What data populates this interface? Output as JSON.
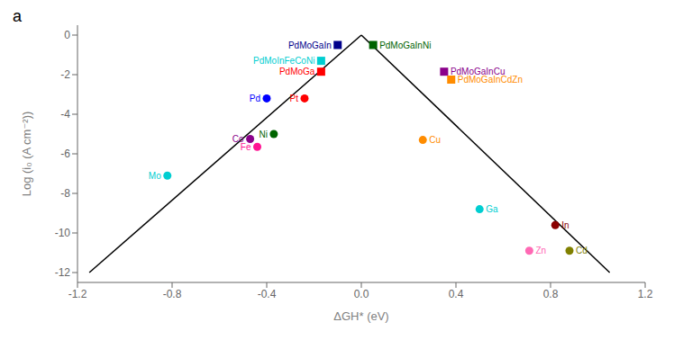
{
  "chart_data": {
    "type": "scatter",
    "title": "a",
    "xlabel": "ΔGH* (eV)",
    "ylabel": "Log (i₀ (A cm⁻²))",
    "xlim": [
      -1.2,
      1.2
    ],
    "ylim": [
      -12.5,
      0.5
    ],
    "xticks": [
      -1.2,
      -0.8,
      -0.4,
      {
        "value": 0,
        "label": "0.0"
      },
      0.4,
      0.8,
      1.2
    ],
    "yticks": [
      0,
      -2,
      -4,
      -6,
      -8,
      -10,
      -12
    ],
    "grid": false,
    "series": [
      {
        "type": "line",
        "color": "#000000",
        "x": [
          -1.15,
          0.0
        ],
        "values": [
          -12.0,
          0.0
        ]
      },
      {
        "type": "line",
        "color": "#000000",
        "x": [
          0.0,
          1.05
        ],
        "values": [
          0.0,
          -12.0
        ]
      },
      {
        "type": "scatter",
        "name": "PdMoGaInNi",
        "color": "#006400",
        "marker": "square",
        "x": [
          0.05
        ],
        "values": [
          -0.5
        ]
      },
      {
        "type": "scatter",
        "name": "PdMoGaIn",
        "color": "#00008B",
        "marker": "square",
        "x": [
          -0.1
        ],
        "values": [
          -0.5
        ]
      },
      {
        "type": "scatter",
        "name": "PdMoInFeCoNi",
        "color": "#00CED1",
        "marker": "square",
        "x": [
          -0.17
        ],
        "values": [
          -1.3
        ]
      },
      {
        "type": "scatter",
        "name": "PdMoGa",
        "color": "#FF0000",
        "marker": "square",
        "x": [
          -0.17
        ],
        "values": [
          -1.85
        ]
      },
      {
        "type": "scatter",
        "name": "PdMoGaInCu",
        "color": "#8B008B",
        "marker": "square",
        "x": [
          0.35
        ],
        "values": [
          -1.85
        ]
      },
      {
        "type": "scatter",
        "name": "PdMoGaInCdZn",
        "color": "#FF8C00",
        "marker": "square",
        "x": [
          0.38
        ],
        "values": [
          -2.25
        ]
      },
      {
        "type": "scatter",
        "name": "Pd",
        "color": "#0000FF",
        "marker": "circle",
        "x": [
          -0.4
        ],
        "values": [
          -3.2
        ]
      },
      {
        "type": "scatter",
        "name": "Pt",
        "color": "#FF0000",
        "marker": "circle",
        "x": [
          -0.24
        ],
        "values": [
          -3.2
        ]
      },
      {
        "type": "scatter",
        "name": "Ni",
        "color": "#006400",
        "marker": "circle",
        "x": [
          -0.37
        ],
        "values": [
          -5.0
        ]
      },
      {
        "type": "scatter",
        "name": "Co",
        "color": "#8B008B",
        "marker": "circle",
        "x": [
          -0.47
        ],
        "values": [
          -5.25
        ]
      },
      {
        "type": "scatter",
        "name": "Fe",
        "color": "#FF1493",
        "marker": "circle",
        "x": [
          -0.44
        ],
        "values": [
          -5.65
        ]
      },
      {
        "type": "scatter",
        "name": "Mo",
        "color": "#00CED1",
        "marker": "circle",
        "x": [
          -0.82
        ],
        "values": [
          -7.1
        ]
      },
      {
        "type": "scatter",
        "name": "Cu",
        "color": "#FF8C00",
        "marker": "circle",
        "x": [
          0.26
        ],
        "values": [
          -5.3
        ]
      },
      {
        "type": "scatter",
        "name": "Ga",
        "color": "#00CED1",
        "marker": "circle",
        "x": [
          0.5
        ],
        "values": [
          -8.8
        ]
      },
      {
        "type": "scatter",
        "name": "In",
        "color": "#8B0000",
        "marker": "circle",
        "x": [
          0.82
        ],
        "values": [
          -9.6
        ]
      },
      {
        "type": "scatter",
        "name": "Zn",
        "color": "#FF69B4",
        "marker": "circle",
        "x": [
          0.71
        ],
        "values": [
          -10.9
        ]
      },
      {
        "type": "scatter",
        "name": "Cd",
        "color": "#808000",
        "marker": "circle",
        "x": [
          0.88
        ],
        "values": [
          -10.9
        ]
      }
    ]
  }
}
